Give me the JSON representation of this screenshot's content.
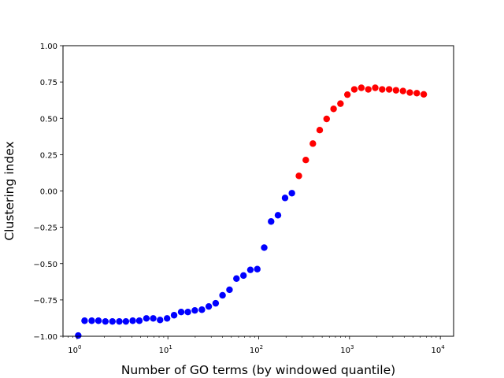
{
  "chart_data": {
    "type": "scatter",
    "xlabel": "Number of GO terms (by windowed quantile)",
    "ylabel": "Clustering index",
    "xscale": "log",
    "xlim": [
      0.7,
      14000
    ],
    "ylim": [
      -1.0,
      1.0
    ],
    "grid": false,
    "x_ticks": [
      {
        "value": 1,
        "base": "10",
        "exp": "0"
      },
      {
        "value": 10,
        "base": "10",
        "exp": "1"
      },
      {
        "value": 100,
        "base": "10",
        "exp": "2"
      },
      {
        "value": 1000,
        "base": "10",
        "exp": "3"
      },
      {
        "value": 10000,
        "base": "10",
        "exp": "4"
      }
    ],
    "y_ticks": [
      {
        "value": -1.0,
        "label": "−1.00"
      },
      {
        "value": -0.75,
        "label": "−0.75"
      },
      {
        "value": -0.5,
        "label": "−0.50"
      },
      {
        "value": -0.25,
        "label": "−0.25"
      },
      {
        "value": 0.0,
        "label": "0.00"
      },
      {
        "value": 0.25,
        "label": "0.25"
      },
      {
        "value": 0.5,
        "label": "0.50"
      },
      {
        "value": 0.75,
        "label": "0.75"
      },
      {
        "value": 1.0,
        "label": "1.00"
      }
    ],
    "series": [
      {
        "color": "#0000ff",
        "points": [
          [
            1.03,
            -0.995
          ],
          [
            1.21,
            -0.893
          ],
          [
            1.45,
            -0.893
          ],
          [
            1.72,
            -0.893
          ],
          [
            2.05,
            -0.898
          ],
          [
            2.45,
            -0.898
          ],
          [
            2.92,
            -0.898
          ],
          [
            3.45,
            -0.898
          ],
          [
            4.1,
            -0.893
          ],
          [
            4.85,
            -0.893
          ],
          [
            5.8,
            -0.877
          ],
          [
            6.9,
            -0.877
          ],
          [
            8.2,
            -0.888
          ],
          [
            9.8,
            -0.877
          ],
          [
            11.7,
            -0.855
          ],
          [
            14.0,
            -0.833
          ],
          [
            16.6,
            -0.833
          ],
          [
            19.8,
            -0.822
          ],
          [
            23.7,
            -0.817
          ],
          [
            28.2,
            -0.795
          ],
          [
            33.6,
            -0.773
          ],
          [
            40.0,
            -0.718
          ],
          [
            47.7,
            -0.68
          ],
          [
            56.9,
            -0.603
          ],
          [
            68.0,
            -0.582
          ],
          [
            81.0,
            -0.543
          ],
          [
            96.5,
            -0.538
          ],
          [
            115,
            -0.39
          ],
          [
            137,
            -0.21
          ],
          [
            163,
            -0.167
          ],
          [
            195,
            -0.048
          ],
          [
            232,
            -0.015
          ]
        ]
      },
      {
        "color": "#ff0000",
        "points": [
          [
            277,
            0.104
          ],
          [
            330,
            0.213
          ],
          [
            395,
            0.326
          ],
          [
            470,
            0.419
          ],
          [
            560,
            0.496
          ],
          [
            668,
            0.565
          ],
          [
            795,
            0.601
          ],
          [
            948,
            0.663
          ],
          [
            1130,
            0.699
          ],
          [
            1350,
            0.71
          ],
          [
            1610,
            0.699
          ],
          [
            1920,
            0.71
          ],
          [
            2290,
            0.699
          ],
          [
            2730,
            0.699
          ],
          [
            3250,
            0.693
          ],
          [
            3880,
            0.688
          ],
          [
            4620,
            0.677
          ],
          [
            5510,
            0.673
          ],
          [
            6570,
            0.665
          ]
        ]
      }
    ]
  }
}
